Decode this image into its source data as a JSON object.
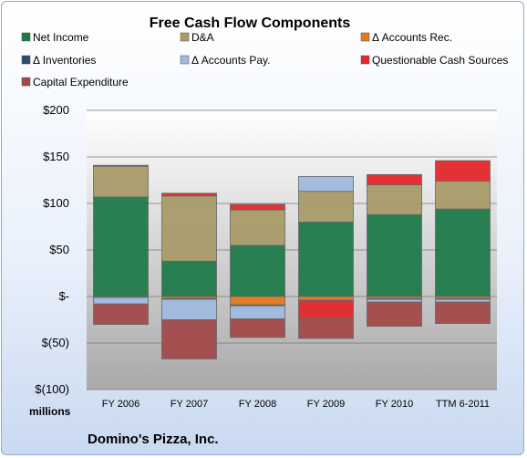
{
  "chart_data": {
    "type": "bar",
    "stacked": true,
    "title": "Free Cash Flow Components",
    "categories": [
      "FY 2006",
      "FY 2007",
      "FY 2008",
      "FY 2009",
      "FY 2010",
      "TTM 6-2011"
    ],
    "ylim": [
      -100,
      200
    ],
    "yticks": [
      200,
      150,
      100,
      50,
      0,
      -50,
      -100
    ],
    "ytick_labels": [
      "$200",
      "$150",
      "$100",
      "$50",
      "$-",
      "$(50)",
      "$(100)"
    ],
    "ylabel": "millions",
    "grid": true,
    "legend": "top",
    "series": [
      {
        "name": "Net Income",
        "color": "#1f7a4a",
        "values": [
          107,
          38,
          55,
          80,
          88,
          94
        ]
      },
      {
        "name": "D&A",
        "color": "#a89b69",
        "values": [
          33,
          70,
          38,
          33,
          32,
          30
        ]
      },
      {
        "name": "Δ Accounts Rec.",
        "color": "#e07a1e",
        "values": [
          -1,
          -2,
          -9,
          -4,
          -2,
          -2
        ]
      },
      {
        "name": "Δ Inventories",
        "color": "#2d4a70",
        "values": [
          0,
          -1,
          -1,
          -1,
          -1,
          -1
        ]
      },
      {
        "name": "Δ Accounts Pay.",
        "color": "#9fb9df",
        "values": [
          -7,
          -22,
          -14,
          16,
          -3,
          -3
        ]
      },
      {
        "name": "Questionable Cash Sources",
        "color": "#e4272c",
        "values": [
          1,
          3,
          6,
          -18,
          11,
          22
        ]
      },
      {
        "name": "Capital Expenditure",
        "color": "#a24a4a",
        "values": [
          -22,
          -42,
          -20,
          -22,
          -26,
          -23
        ]
      }
    ]
  },
  "footer": {
    "company": "Domino's Pizza, Inc."
  }
}
